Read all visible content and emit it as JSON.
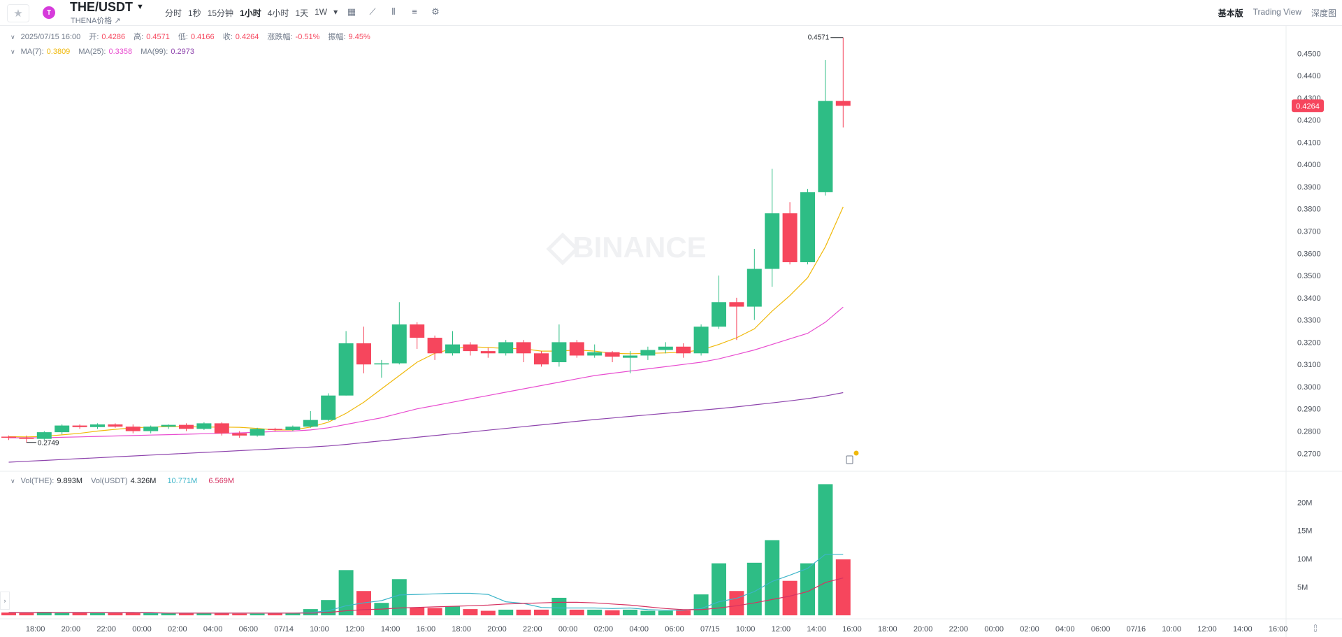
{
  "header": {
    "favorite_icon": "star-icon",
    "coin_badge": "T",
    "pair": "THE/USDT",
    "subtitle": "THENA价格 ↗",
    "intervals": [
      "分时",
      "1秒",
      "15分钟",
      "1小时",
      "4小时",
      "1天",
      "1W"
    ],
    "active_interval": "1小时",
    "tool_icons": [
      "calendar-icon",
      "draw-line-icon",
      "candle-type-icon",
      "indicator-icon",
      "settings-icon"
    ],
    "views": [
      "基本版",
      "Trading View",
      "深度图"
    ],
    "active_view": "基本版"
  },
  "ohlc_legend": {
    "time": "2025/07/15 16:00",
    "open_label": "开:",
    "open": "0.4286",
    "high_label": "高:",
    "high": "0.4571",
    "low_label": "低:",
    "low": "0.4166",
    "close_label": "收:",
    "close": "0.4264",
    "change_label": "涨跌幅:",
    "change": "-0.51%",
    "amp_label": "振幅:",
    "amp": "9.45%"
  },
  "ma_legend": [
    {
      "label": "MA(7):",
      "value": "0.3809",
      "color": "#f0b90b"
    },
    {
      "label": "MA(25):",
      "value": "0.3358",
      "color": "#e84dd0"
    },
    {
      "label": "MA(99):",
      "value": "0.2973",
      "color": "#8e44ad"
    }
  ],
  "vol_legend": [
    {
      "label": "Vol(THE):",
      "value": "9.893M",
      "color": "#1e2329"
    },
    {
      "label": "Vol(USDT)",
      "value": "4.326M",
      "color": "#1e2329"
    },
    {
      "label": "",
      "value": "10.771M",
      "color": "#3db5c9"
    },
    {
      "label": "",
      "value": "6.569M",
      "color": "#d63362"
    }
  ],
  "watermark": "BINANCE",
  "colors": {
    "up": "#2ebd85",
    "down": "#f6465d",
    "ma7": "#f0b90b",
    "ma25": "#e84dd0",
    "ma99": "#8e44ad",
    "volma1": "#3db5c9",
    "volma2": "#d63362"
  },
  "chart_data": {
    "type": "candlestick",
    "ylim": [
      0.2638,
      0.4589
    ],
    "yticks": [
      "0.2700",
      "0.2800",
      "0.2900",
      "0.3000",
      "0.3100",
      "0.3200",
      "0.3300",
      "0.3400",
      "0.3500",
      "0.3600",
      "0.3700",
      "0.3800",
      "0.3900",
      "0.4000",
      "0.4100",
      "0.4200",
      "0.4300",
      "0.4400",
      "0.4500"
    ],
    "last_price": "0.4264",
    "high_marker": "0.4571",
    "low_marker": "0.2749",
    "xticks": [
      "18:00",
      "20:00",
      "22:00",
      "00:00",
      "02:00",
      "04:00",
      "06:00",
      "07/14",
      "10:00",
      "12:00",
      "14:00",
      "16:00",
      "18:00",
      "20:00",
      "22:00",
      "00:00",
      "02:00",
      "04:00",
      "06:00",
      "07/15",
      "10:00",
      "12:00",
      "14:00",
      "16:00",
      "18:00",
      "20:00",
      "22:00",
      "00:00",
      "02:00",
      "04:00",
      "06:00",
      "07/16",
      "10:00",
      "12:00",
      "14:00",
      "16:00"
    ],
    "candles": [
      [
        0.2775,
        0.278,
        0.276,
        0.277
      ],
      [
        0.277,
        0.278,
        0.2749,
        0.2765
      ],
      [
        0.2765,
        0.28,
        0.276,
        0.2795
      ],
      [
        0.2795,
        0.283,
        0.2785,
        0.2825
      ],
      [
        0.2825,
        0.283,
        0.281,
        0.2818
      ],
      [
        0.2818,
        0.2835,
        0.281,
        0.283
      ],
      [
        0.283,
        0.2835,
        0.2815,
        0.282
      ],
      [
        0.282,
        0.283,
        0.279,
        0.28
      ],
      [
        0.28,
        0.2825,
        0.279,
        0.282
      ],
      [
        0.282,
        0.283,
        0.281,
        0.2828
      ],
      [
        0.2828,
        0.2835,
        0.28,
        0.281
      ],
      [
        0.281,
        0.284,
        0.2805,
        0.2835
      ],
      [
        0.2835,
        0.284,
        0.278,
        0.279
      ],
      [
        0.279,
        0.28,
        0.277,
        0.278
      ],
      [
        0.278,
        0.2815,
        0.2775,
        0.281
      ],
      [
        0.281,
        0.2815,
        0.28,
        0.2805
      ],
      [
        0.2805,
        0.2825,
        0.28,
        0.282
      ],
      [
        0.282,
        0.289,
        0.2815,
        0.285
      ],
      [
        0.285,
        0.297,
        0.2845,
        0.296
      ],
      [
        0.296,
        0.325,
        0.296,
        0.3195
      ],
      [
        0.3195,
        0.327,
        0.306,
        0.31
      ],
      [
        0.31,
        0.312,
        0.304,
        0.3105
      ],
      [
        0.3105,
        0.338,
        0.31,
        0.328
      ],
      [
        0.328,
        0.329,
        0.317,
        0.322
      ],
      [
        0.322,
        0.323,
        0.312,
        0.315
      ],
      [
        0.315,
        0.325,
        0.314,
        0.319
      ],
      [
        0.319,
        0.32,
        0.314,
        0.316
      ],
      [
        0.316,
        0.3175,
        0.313,
        0.315
      ],
      [
        0.315,
        0.321,
        0.314,
        0.32
      ],
      [
        0.32,
        0.321,
        0.311,
        0.315
      ],
      [
        0.315,
        0.316,
        0.309,
        0.31
      ],
      [
        0.311,
        0.328,
        0.309,
        0.32
      ],
      [
        0.32,
        0.321,
        0.313,
        0.314
      ],
      [
        0.314,
        0.319,
        0.313,
        0.3155
      ],
      [
        0.3155,
        0.316,
        0.311,
        0.3135
      ],
      [
        0.313,
        0.316,
        0.306,
        0.314
      ],
      [
        0.314,
        0.318,
        0.312,
        0.3165
      ],
      [
        0.3165,
        0.32,
        0.315,
        0.318
      ],
      [
        0.318,
        0.3195,
        0.313,
        0.315
      ],
      [
        0.315,
        0.328,
        0.314,
        0.327
      ],
      [
        0.327,
        0.35,
        0.326,
        0.338
      ],
      [
        0.338,
        0.34,
        0.321,
        0.336
      ],
      [
        0.336,
        0.362,
        0.33,
        0.353
      ],
      [
        0.353,
        0.398,
        0.345,
        0.378
      ],
      [
        0.378,
        0.383,
        0.355,
        0.356
      ],
      [
        0.356,
        0.389,
        0.355,
        0.3875
      ],
      [
        0.3875,
        0.447,
        0.386,
        0.4286
      ],
      [
        0.4286,
        0.4571,
        0.4166,
        0.4264
      ]
    ],
    "ma7": [
      0.2775,
      0.2774,
      0.2776,
      0.2783,
      0.279,
      0.28,
      0.2808,
      0.2815,
      0.2818,
      0.282,
      0.282,
      0.2818,
      0.2818,
      0.2817,
      0.2812,
      0.2805,
      0.2805,
      0.2818,
      0.284,
      0.288,
      0.293,
      0.299,
      0.305,
      0.311,
      0.315,
      0.317,
      0.318,
      0.3176,
      0.3172,
      0.317,
      0.316,
      0.316,
      0.3165,
      0.316,
      0.315,
      0.3148,
      0.315,
      0.3152,
      0.3155,
      0.3165,
      0.319,
      0.322,
      0.326,
      0.334,
      0.341,
      0.349,
      0.363,
      0.3809
    ],
    "ma25": [
      0.277,
      0.277,
      0.277,
      0.2772,
      0.2774,
      0.2776,
      0.2778,
      0.278,
      0.2782,
      0.2784,
      0.2786,
      0.2788,
      0.279,
      0.2792,
      0.2795,
      0.2798,
      0.28,
      0.2805,
      0.2815,
      0.283,
      0.2845,
      0.286,
      0.288,
      0.29,
      0.2915,
      0.293,
      0.2945,
      0.296,
      0.2975,
      0.299,
      0.3005,
      0.302,
      0.3035,
      0.305,
      0.306,
      0.307,
      0.308,
      0.309,
      0.31,
      0.311,
      0.3125,
      0.3145,
      0.3165,
      0.319,
      0.3215,
      0.324,
      0.329,
      0.3358
    ],
    "ma99": [
      0.266,
      0.2664,
      0.2668,
      0.2672,
      0.2676,
      0.268,
      0.2684,
      0.2688,
      0.2692,
      0.2696,
      0.27,
      0.2704,
      0.2708,
      0.2712,
      0.2716,
      0.272,
      0.2724,
      0.2728,
      0.2733,
      0.274,
      0.2748,
      0.2756,
      0.2764,
      0.2772,
      0.278,
      0.2788,
      0.2796,
      0.2804,
      0.2812,
      0.282,
      0.2828,
      0.2836,
      0.2844,
      0.2852,
      0.2859,
      0.2866,
      0.2873,
      0.288,
      0.2887,
      0.2894,
      0.2901,
      0.2909,
      0.2918,
      0.2927,
      0.2936,
      0.2946,
      0.2958,
      0.2973
    ],
    "volume": {
      "ylim": [
        0,
        23.5
      ],
      "yticks": [
        "5M",
        "10M",
        "15M",
        "20M"
      ],
      "values": [
        0.5,
        0.4,
        0.6,
        0.4,
        0.5,
        0.4,
        0.4,
        0.5,
        0.4,
        0.4,
        0.4,
        0.4,
        0.4,
        0.3,
        0.3,
        0.4,
        0.4,
        1.1,
        2.7,
        8.0,
        4.3,
        2.2,
        6.4,
        1.4,
        1.3,
        1.6,
        1.1,
        0.8,
        1.0,
        1.0,
        1.0,
        3.1,
        1.0,
        1.0,
        0.9,
        1.0,
        0.8,
        0.8,
        0.9,
        3.7,
        9.2,
        4.3,
        9.3,
        13.3,
        6.1,
        9.2,
        23.2,
        9.9
      ],
      "ma_a": [
        0.5,
        0.5,
        0.5,
        0.5,
        0.5,
        0.5,
        0.5,
        0.5,
        0.4,
        0.4,
        0.4,
        0.4,
        0.4,
        0.4,
        0.4,
        0.4,
        0.4,
        0.5,
        0.8,
        1.7,
        2.2,
        2.6,
        3.6,
        3.7,
        3.8,
        3.9,
        3.9,
        3.7,
        2.4,
        2.1,
        1.4,
        1.3,
        1.3,
        1.3,
        1.2,
        1.3,
        1.0,
        0.9,
        0.9,
        1.2,
        2.4,
        3.0,
        4.2,
        6.0,
        7.1,
        8.3,
        10.8,
        10.8
      ],
      "ma_b": [
        0.5,
        0.5,
        0.5,
        0.5,
        0.5,
        0.5,
        0.5,
        0.5,
        0.5,
        0.4,
        0.4,
        0.4,
        0.4,
        0.4,
        0.4,
        0.4,
        0.4,
        0.4,
        0.5,
        0.8,
        1.0,
        1.1,
        1.3,
        1.4,
        1.5,
        1.6,
        1.7,
        1.8,
        2.0,
        2.1,
        2.2,
        2.3,
        2.3,
        2.2,
        2.0,
        1.8,
        1.5,
        1.2,
        1.0,
        1.0,
        1.3,
        1.7,
        2.2,
        2.8,
        3.4,
        4.2,
        5.8,
        6.6
      ]
    }
  }
}
